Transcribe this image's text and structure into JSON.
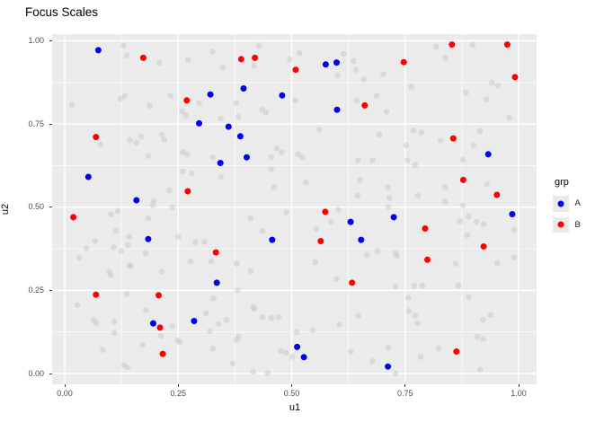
{
  "title": "Focus Scales",
  "colors": {
    "panel_background": "#EBEBEB",
    "gridline": "#FFFFFF",
    "tick_text": "#4D4D4D",
    "title_text": "#000000",
    "group_a": "#0000EE",
    "group_b": "#FF0000",
    "background_point": "#C8C8C8"
  },
  "chart_data": {
    "type": "scatter",
    "title": "Focus Scales",
    "xlabel": "u1",
    "ylabel": "u2",
    "xlim": [
      -0.028,
      1.04
    ],
    "ylim": [
      -0.02,
      1.01
    ],
    "grid": true,
    "x_ticks": {
      "labels": [
        "0.00",
        "0.25",
        "0.50",
        "0.75",
        "1.00"
      ],
      "values": [
        0,
        0.25,
        0.5,
        0.75,
        1
      ]
    },
    "y_ticks": {
      "labels": [
        "0.00",
        "0.25",
        "0.50",
        "0.75",
        "1.00"
      ],
      "values": [
        0,
        0.25,
        0.5,
        0.75,
        1
      ]
    },
    "x_minor": [
      0.125,
      0.375,
      0.625,
      0.875
    ],
    "y_minor": [
      0.125,
      0.375,
      0.625,
      0.875
    ],
    "legend": {
      "title": "grp",
      "position": "right",
      "items": [
        {
          "label": "A",
          "color": "#0000EE"
        },
        {
          "label": "B",
          "color": "#FF0000"
        }
      ]
    },
    "series": [
      {
        "name": "A",
        "color": "#0000EE",
        "points": [
          [
            0.074,
            0.972
          ],
          [
            0.394,
            0.857
          ],
          [
            0.321,
            0.839
          ],
          [
            0.479,
            0.836
          ],
          [
            0.296,
            0.752
          ],
          [
            0.361,
            0.742
          ],
          [
            0.387,
            0.713
          ],
          [
            0.575,
            0.929
          ],
          [
            0.599,
            0.935
          ],
          [
            0.6,
            0.793
          ],
          [
            0.343,
            0.633
          ],
          [
            0.401,
            0.65
          ],
          [
            0.052,
            0.591
          ],
          [
            0.158,
            0.521
          ],
          [
            0.184,
            0.404
          ],
          [
            0.457,
            0.402
          ],
          [
            0.933,
            0.659
          ],
          [
            0.725,
            0.47
          ],
          [
            0.986,
            0.479
          ],
          [
            0.63,
            0.456
          ],
          [
            0.653,
            0.402
          ],
          [
            0.335,
            0.273
          ],
          [
            0.195,
            0.151
          ],
          [
            0.285,
            0.158
          ],
          [
            0.512,
            0.08
          ],
          [
            0.527,
            0.049
          ],
          [
            0.712,
            0.021
          ]
        ]
      },
      {
        "name": "B",
        "color": "#FF0000",
        "points": [
          [
            0.173,
            0.949
          ],
          [
            0.389,
            0.945
          ],
          [
            0.419,
            0.949
          ],
          [
            0.269,
            0.821
          ],
          [
            0.069,
            0.711
          ],
          [
            0.853,
            0.989
          ],
          [
            0.975,
            0.989
          ],
          [
            0.747,
            0.936
          ],
          [
            0.509,
            0.913
          ],
          [
            0.992,
            0.891
          ],
          [
            0.661,
            0.806
          ],
          [
            0.856,
            0.707
          ],
          [
            0.271,
            0.548
          ],
          [
            0.019,
            0.47
          ],
          [
            0.333,
            0.364
          ],
          [
            0.878,
            0.582
          ],
          [
            0.952,
            0.537
          ],
          [
            0.574,
            0.486
          ],
          [
            0.794,
            0.436
          ],
          [
            0.564,
            0.398
          ],
          [
            0.923,
            0.382
          ],
          [
            0.799,
            0.342
          ],
          [
            0.069,
            0.237
          ],
          [
            0.207,
            0.235
          ],
          [
            0.21,
            0.138
          ],
          [
            0.216,
            0.059
          ],
          [
            0.633,
            0.273
          ],
          [
            0.863,
            0.066
          ]
        ]
      }
    ],
    "background_points": {
      "color": "#C8C8C8",
      "opacity": 0.5,
      "points": [
        [
          0.129,
          0.986
        ],
        [
          0.137,
          0.956
        ],
        [
          0.209,
          0.934
        ],
        [
          0.272,
          0.943
        ],
        [
          0.326,
          0.967
        ],
        [
          0.348,
          0.92
        ],
        [
          0.417,
          0.925
        ],
        [
          0.428,
          0.986
        ],
        [
          0.496,
          0.944
        ],
        [
          0.016,
          0.808
        ],
        [
          0.123,
          0.826
        ],
        [
          0.132,
          0.834
        ],
        [
          0.187,
          0.805
        ],
        [
          0.233,
          0.835
        ],
        [
          0.259,
          0.788
        ],
        [
          0.267,
          0.776
        ],
        [
          0.296,
          0.813
        ],
        [
          0.344,
          0.767
        ],
        [
          0.377,
          0.813
        ],
        [
          0.382,
          0.772
        ],
        [
          0.435,
          0.793
        ],
        [
          0.443,
          0.784
        ],
        [
          0.079,
          0.688
        ],
        [
          0.144,
          0.702
        ],
        [
          0.158,
          0.694
        ],
        [
          0.169,
          0.712
        ],
        [
          0.214,
          0.718
        ],
        [
          0.219,
          0.703
        ],
        [
          0.467,
          0.677
        ],
        [
          0.517,
          0.963
        ],
        [
          0.614,
          0.961
        ],
        [
          0.636,
          0.939
        ],
        [
          0.642,
          0.913
        ],
        [
          0.659,
          0.884
        ],
        [
          0.702,
          0.9
        ],
        [
          0.601,
          0.896
        ],
        [
          0.818,
          0.983
        ],
        [
          0.839,
          0.949
        ],
        [
          0.898,
          0.988
        ],
        [
          0.941,
          0.874
        ],
        [
          0.954,
          0.866
        ],
        [
          0.764,
          0.862
        ],
        [
          0.884,
          0.844
        ],
        [
          0.929,
          0.823
        ],
        [
          0.979,
          0.769
        ],
        [
          0.508,
          0.821
        ],
        [
          0.643,
          0.82
        ],
        [
          0.687,
          0.835
        ],
        [
          0.709,
          0.787
        ],
        [
          0.561,
          0.733
        ],
        [
          0.693,
          0.718
        ],
        [
          0.768,
          0.731
        ],
        [
          0.786,
          0.725
        ],
        [
          0.828,
          0.7
        ],
        [
          0.915,
          0.729
        ],
        [
          0.901,
          0.686
        ],
        [
          0.752,
          0.686
        ],
        [
          0.184,
          0.654
        ],
        [
          0.26,
          0.665
        ],
        [
          0.27,
          0.659
        ],
        [
          0.326,
          0.65
        ],
        [
          0.455,
          0.65
        ],
        [
          0.478,
          0.665
        ],
        [
          0.26,
          0.607
        ],
        [
          0.28,
          0.602
        ],
        [
          0.344,
          0.591
        ],
        [
          0.455,
          0.614
        ],
        [
          0.23,
          0.551
        ],
        [
          0.196,
          0.519
        ],
        [
          0.194,
          0.506
        ],
        [
          0.237,
          0.499
        ],
        [
          0.461,
          0.56
        ],
        [
          0.117,
          0.488
        ],
        [
          0.102,
          0.479
        ],
        [
          0.113,
          0.429
        ],
        [
          0.184,
          0.467
        ],
        [
          0.142,
          0.411
        ],
        [
          0.067,
          0.398
        ],
        [
          0.048,
          0.377
        ],
        [
          0.032,
          0.348
        ],
        [
          0.125,
          0.368
        ],
        [
          0.139,
          0.386
        ],
        [
          0.178,
          0.362
        ],
        [
          0.143,
          0.326
        ],
        [
          0.25,
          0.411
        ],
        [
          0.288,
          0.395
        ],
        [
          0.308,
          0.396
        ],
        [
          0.277,
          0.337
        ],
        [
          0.323,
          0.337
        ],
        [
          0.379,
          0.33
        ],
        [
          0.409,
          0.467
        ],
        [
          0.436,
          0.428
        ],
        [
          0.488,
          0.484
        ],
        [
          0.514,
          0.659
        ],
        [
          0.524,
          0.65
        ],
        [
          0.531,
          0.575
        ],
        [
          0.646,
          0.641
        ],
        [
          0.678,
          0.641
        ],
        [
          0.755,
          0.641
        ],
        [
          0.772,
          0.627
        ],
        [
          0.877,
          0.643
        ],
        [
          0.93,
          0.569
        ],
        [
          0.65,
          0.582
        ],
        [
          0.645,
          0.535
        ],
        [
          0.712,
          0.56
        ],
        [
          0.715,
          0.528
        ],
        [
          0.778,
          0.535
        ],
        [
          0.838,
          0.56
        ],
        [
          0.838,
          0.517
        ],
        [
          0.877,
          0.506
        ],
        [
          0.713,
          0.501
        ],
        [
          0.603,
          0.492
        ],
        [
          0.89,
          0.472
        ],
        [
          0.907,
          0.456
        ],
        [
          0.923,
          0.449
        ],
        [
          0.587,
          0.456
        ],
        [
          0.554,
          0.434
        ],
        [
          0.871,
          0.458
        ],
        [
          0.887,
          0.416
        ],
        [
          0.99,
          0.431
        ],
        [
          0.666,
          0.357
        ],
        [
          0.689,
          0.368
        ],
        [
          0.729,
          0.362
        ],
        [
          0.732,
          0.353
        ],
        [
          0.861,
          0.33
        ],
        [
          0.953,
          0.332
        ],
        [
          0.99,
          0.348
        ],
        [
          0.552,
          0.335
        ],
        [
          0.098,
          0.305
        ],
        [
          0.102,
          0.295
        ],
        [
          0.214,
          0.307
        ],
        [
          0.41,
          0.308
        ],
        [
          0.137,
          0.239
        ],
        [
          0.328,
          0.226
        ],
        [
          0.381,
          0.251
        ],
        [
          0.179,
          0.19
        ],
        [
          0.064,
          0.161
        ],
        [
          0.069,
          0.152
        ],
        [
          0.11,
          0.156
        ],
        [
          0.11,
          0.122
        ],
        [
          0.237,
          0.143
        ],
        [
          0.311,
          0.181
        ],
        [
          0.339,
          0.149
        ],
        [
          0.356,
          0.161
        ],
        [
          0.32,
          0.127
        ],
        [
          0.418,
          0.194
        ],
        [
          0.436,
          0.17
        ],
        [
          0.455,
          0.167
        ],
        [
          0.471,
          0.17
        ],
        [
          0.415,
          0.199
        ],
        [
          0.383,
          0.111
        ],
        [
          0.379,
          0.102
        ],
        [
          0.212,
          0.113
        ],
        [
          0.249,
          0.1
        ],
        [
          0.253,
          0.095
        ],
        [
          0.171,
          0.086
        ],
        [
          0.326,
          0.075
        ],
        [
          0.084,
          0.071
        ],
        [
          0.37,
          0.03
        ],
        [
          0.415,
          0.005
        ],
        [
          0.13,
          0.026
        ],
        [
          0.138,
          0.019
        ],
        [
          0.476,
          0.068
        ],
        [
          0.488,
          0.062
        ],
        [
          0.447,
          0.002
        ],
        [
          0.028,
          0.206
        ],
        [
          0.108,
          0.379
        ],
        [
          0.145,
          0.322
        ],
        [
          0.599,
          0.284
        ],
        [
          0.729,
          0.262
        ],
        [
          0.77,
          0.264
        ],
        [
          0.788,
          0.264
        ],
        [
          0.867,
          0.264
        ],
        [
          0.89,
          0.23
        ],
        [
          0.757,
          0.228
        ],
        [
          0.758,
          0.188
        ],
        [
          0.772,
          0.174
        ],
        [
          0.777,
          0.152
        ],
        [
          0.647,
          0.174
        ],
        [
          0.605,
          0.147
        ],
        [
          0.547,
          0.131
        ],
        [
          0.511,
          0.125
        ],
        [
          0.922,
          0.161
        ],
        [
          0.938,
          0.176
        ],
        [
          0.909,
          0.111
        ],
        [
          0.922,
          0.104
        ],
        [
          0.63,
          0.066
        ],
        [
          0.713,
          0.077
        ],
        [
          0.678,
          0.037
        ],
        [
          0.784,
          0.05
        ],
        [
          0.824,
          0.075
        ],
        [
          0.729,
          0.001
        ],
        [
          0.915,
          0.012
        ],
        [
          0.501,
          0.05
        ]
      ]
    }
  }
}
